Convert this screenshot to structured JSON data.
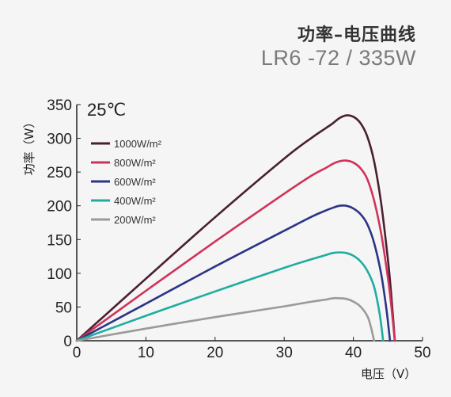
{
  "chart_data": {
    "type": "line",
    "title": "功率–电压曲线",
    "subtitle": "LR6 -72 / 335W",
    "annotation": "25℃",
    "xlabel": "电压（V）",
    "ylabel": "功率（W）",
    "xlim": [
      0,
      50
    ],
    "ylim": [
      0,
      350
    ],
    "xticks": [
      0,
      10,
      20,
      30,
      40,
      50
    ],
    "yticks": [
      0,
      50,
      100,
      150,
      200,
      250,
      300,
      350
    ],
    "grid": false,
    "legend_position": "top-left",
    "series": [
      {
        "name": "1000W/m²",
        "color": "#4a2030",
        "x": [
          0,
          10,
          20,
          30,
          34,
          36,
          37,
          38,
          39,
          40,
          41,
          42,
          43,
          44,
          45,
          45.5,
          46
        ],
        "y": [
          0,
          92,
          183,
          270,
          301,
          315,
          322,
          330,
          334,
          332,
          323,
          303,
          266,
          205,
          120,
          65,
          0
        ]
      },
      {
        "name": "800W/m²",
        "color": "#d0325a",
        "x": [
          0,
          10,
          20,
          30,
          34,
          36,
          37,
          38,
          39,
          40,
          41,
          42,
          43,
          44,
          45,
          45.5,
          46
        ],
        "y": [
          0,
          74,
          147,
          218,
          245,
          256,
          262,
          266,
          267,
          264,
          256,
          240,
          208,
          160,
          93,
          50,
          0
        ]
      },
      {
        "name": "600W/m²",
        "color": "#2b3585",
        "x": [
          0,
          10,
          20,
          30,
          34,
          36,
          37,
          38,
          39,
          40,
          41,
          42,
          43,
          44,
          44.8,
          45.3
        ],
        "y": [
          0,
          55,
          110,
          163,
          184,
          193,
          197,
          200,
          200,
          196,
          188,
          173,
          145,
          100,
          45,
          0
        ]
      },
      {
        "name": "400W/m²",
        "color": "#1fada0",
        "x": [
          0,
          10,
          20,
          30,
          34,
          36,
          37,
          38,
          39,
          40,
          41,
          42,
          43,
          43.8,
          44.3
        ],
        "y": [
          0,
          37,
          73,
          108,
          121,
          127,
          130,
          131,
          130,
          126,
          118,
          104,
          80,
          40,
          0
        ]
      },
      {
        "name": "200W/m²",
        "color": "#9a9a9a",
        "x": [
          0,
          10,
          20,
          30,
          34,
          36,
          37,
          38,
          39,
          40,
          41,
          42,
          42.5,
          43
        ],
        "y": [
          0,
          18,
          35,
          51,
          58,
          61,
          63,
          63,
          62,
          58,
          51,
          37,
          22,
          0
        ]
      }
    ]
  }
}
